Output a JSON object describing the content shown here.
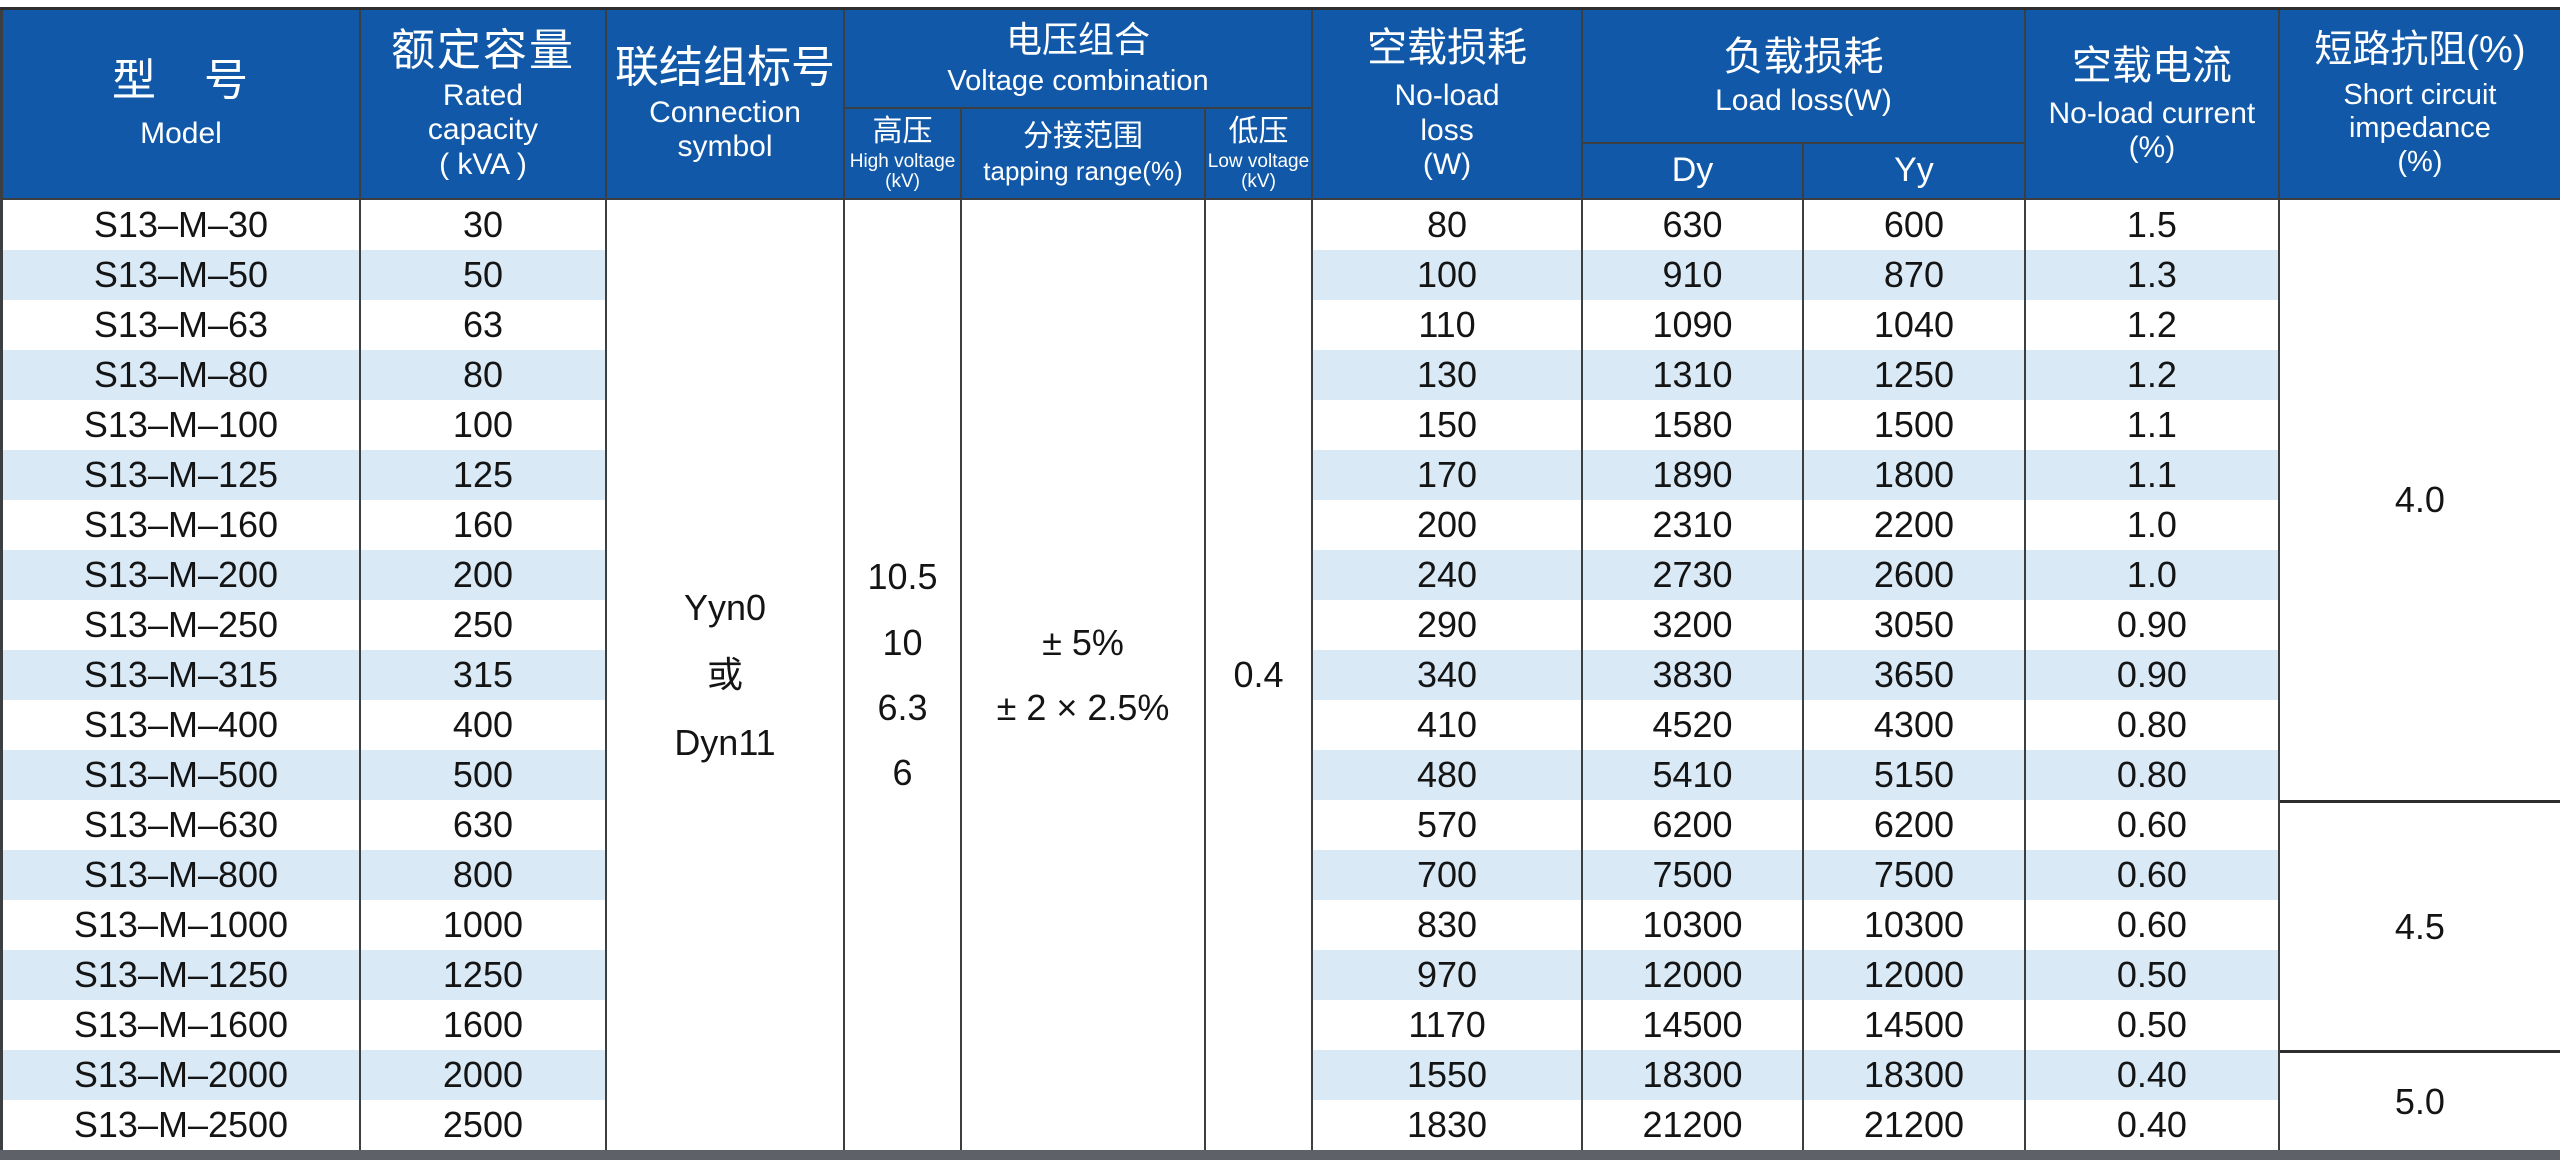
{
  "table": {
    "header": {
      "model": {
        "zh": "型　号",
        "en": "Model"
      },
      "capacity": {
        "zh": "额定容量",
        "en1": "Rated",
        "en2": "capacity",
        "en3": "( kVA )"
      },
      "connection": {
        "zh": "联结组标号",
        "en1": "Connection",
        "en2": "symbol"
      },
      "voltage_group": {
        "zh": "电压组合",
        "en": "Voltage combination"
      },
      "high_voltage": {
        "zh": "高压",
        "en": "High voltage",
        "unit": "(kV)"
      },
      "tapping_range": {
        "zh": "分接范围",
        "en": "tapping range(%)"
      },
      "low_voltage": {
        "zh": "低压",
        "en": "Low voltage",
        "unit": "(kV)"
      },
      "no_load_loss": {
        "zh": "空载损耗",
        "en1": "No-load",
        "en2": "loss",
        "en3": "(W)"
      },
      "load_loss": {
        "zh": "负载损耗",
        "en": "Load loss(W)",
        "dy": "Dy",
        "yy": "Yy"
      },
      "no_load_current": {
        "zh": "空载电流",
        "en": "No-load current",
        "unit": "(%)"
      },
      "impedance": {
        "zh": "短路抗阻(%)",
        "en1": "Short circuit",
        "en2": "impedance",
        "en3": "(%)"
      }
    },
    "merged": {
      "connection_value": [
        "Yyn0",
        "或",
        "Dyn11"
      ],
      "high_voltage_values": [
        "10.5",
        "10",
        "6.3",
        "6"
      ],
      "tapping_values": [
        "± 5%",
        "± 2 × 2.5%"
      ],
      "low_voltage_value": "0.4",
      "impedance_sections": [
        {
          "value": "4.0",
          "rows": 12
        },
        {
          "value": "4.5",
          "rows": 5
        },
        {
          "value": "5.0",
          "rows": 2
        }
      ]
    },
    "rows": [
      {
        "model": "S13–M–30",
        "capacity": "30",
        "no_load_loss": "80",
        "dy": "630",
        "yy": "600",
        "current": "1.5"
      },
      {
        "model": "S13–M–50",
        "capacity": "50",
        "no_load_loss": "100",
        "dy": "910",
        "yy": "870",
        "current": "1.3"
      },
      {
        "model": "S13–M–63",
        "capacity": "63",
        "no_load_loss": "110",
        "dy": "1090",
        "yy": "1040",
        "current": "1.2"
      },
      {
        "model": "S13–M–80",
        "capacity": "80",
        "no_load_loss": "130",
        "dy": "1310",
        "yy": "1250",
        "current": "1.2"
      },
      {
        "model": "S13–M–100",
        "capacity": "100",
        "no_load_loss": "150",
        "dy": "1580",
        "yy": "1500",
        "current": "1.1"
      },
      {
        "model": "S13–M–125",
        "capacity": "125",
        "no_load_loss": "170",
        "dy": "1890",
        "yy": "1800",
        "current": "1.1"
      },
      {
        "model": "S13–M–160",
        "capacity": "160",
        "no_load_loss": "200",
        "dy": "2310",
        "yy": "2200",
        "current": "1.0"
      },
      {
        "model": "S13–M–200",
        "capacity": "200",
        "no_load_loss": "240",
        "dy": "2730",
        "yy": "2600",
        "current": "1.0"
      },
      {
        "model": "S13–M–250",
        "capacity": "250",
        "no_load_loss": "290",
        "dy": "3200",
        "yy": "3050",
        "current": "0.90"
      },
      {
        "model": "S13–M–315",
        "capacity": "315",
        "no_load_loss": "340",
        "dy": "3830",
        "yy": "3650",
        "current": "0.90"
      },
      {
        "model": "S13–M–400",
        "capacity": "400",
        "no_load_loss": "410",
        "dy": "4520",
        "yy": "4300",
        "current": "0.80"
      },
      {
        "model": "S13–M–500",
        "capacity": "500",
        "no_load_loss": "480",
        "dy": "5410",
        "yy": "5150",
        "current": "0.80"
      },
      {
        "model": "S13–M–630",
        "capacity": "630",
        "no_load_loss": "570",
        "dy": "6200",
        "yy": "6200",
        "current": "0.60"
      },
      {
        "model": "S13–M–800",
        "capacity": "800",
        "no_load_loss": "700",
        "dy": "7500",
        "yy": "7500",
        "current": "0.60"
      },
      {
        "model": "S13–M–1000",
        "capacity": "1000",
        "no_load_loss": "830",
        "dy": "10300",
        "yy": "10300",
        "current": "0.60"
      },
      {
        "model": "S13–M–1250",
        "capacity": "1250",
        "no_load_loss": "970",
        "dy": "12000",
        "yy": "12000",
        "current": "0.50"
      },
      {
        "model": "S13–M–1600",
        "capacity": "1600",
        "no_load_loss": "1170",
        "dy": "14500",
        "yy": "14500",
        "current": "0.50"
      },
      {
        "model": "S13–M–2000",
        "capacity": "2000",
        "no_load_loss": "1550",
        "dy": "18300",
        "yy": "18300",
        "current": "0.40"
      },
      {
        "model": "S13–M–2500",
        "capacity": "2500",
        "no_load_loss": "1830",
        "dy": "21200",
        "yy": "21200",
        "current": "0.40"
      }
    ]
  },
  "colors": {
    "header_bg": "#1159a8",
    "stripe": "#d9e9f6",
    "grid": "#3c3f42",
    "text": "#141414",
    "header_text": "#ffffff",
    "bottom_bar": "#5e6268"
  }
}
